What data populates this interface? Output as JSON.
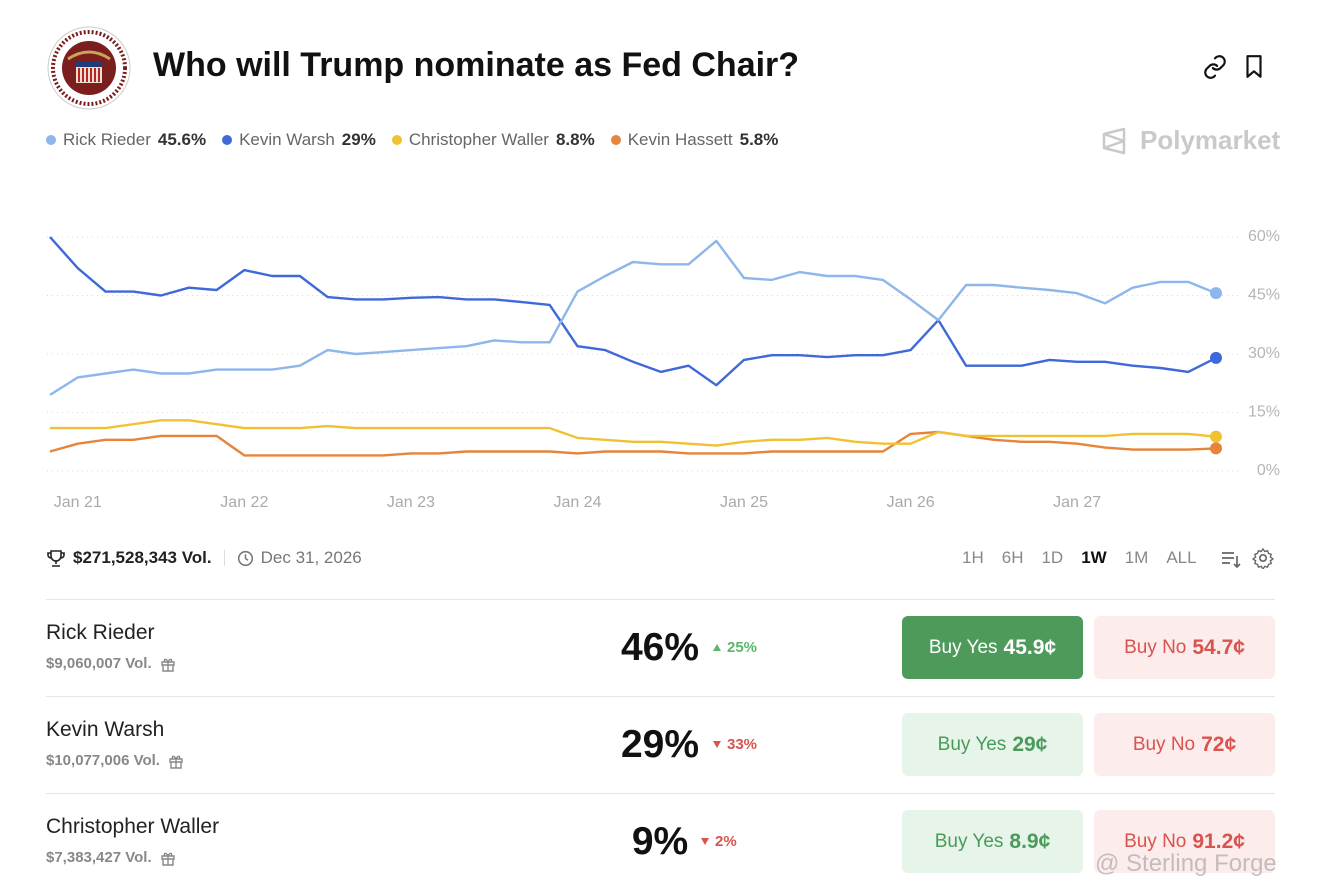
{
  "header": {
    "title": "Who will Trump nominate as Fed Chair?",
    "brand": "Polymarket"
  },
  "chart_data": {
    "type": "line",
    "categories": [
      null,
      "Jan 21",
      null,
      null,
      null,
      null,
      null,
      "Jan 22",
      null,
      null,
      null,
      null,
      null,
      "Jan 23",
      null,
      null,
      null,
      null,
      null,
      "Jan 24",
      null,
      null,
      null,
      null,
      null,
      "Jan 25",
      null,
      null,
      null,
      null,
      null,
      "Jan 26",
      null,
      null,
      null,
      null,
      null,
      "Jan 27",
      null,
      null,
      null,
      null,
      null
    ],
    "series": [
      {
        "name": "Rick Rieder",
        "color": "#8db6ea",
        "current": {
          "value": 45.6,
          "label": "45.6%"
        },
        "values": [
          19.5,
          24,
          25,
          26,
          25,
          25,
          26,
          26,
          26,
          27,
          31,
          30,
          30.5,
          31,
          31.5,
          32,
          33.5,
          33,
          33,
          46,
          50,
          53.6,
          53,
          53,
          59,
          49.5,
          49,
          51,
          50,
          50,
          49,
          44,
          38.7,
          47.7,
          47.7,
          47,
          46.4,
          45.6,
          43,
          47,
          48.5,
          48.5,
          45.6
        ]
      },
      {
        "name": "Kevin Warsh",
        "color": "#3f68d8",
        "current": {
          "value": 29,
          "label": "29%"
        },
        "values": [
          60,
          52,
          46,
          46,
          45,
          47,
          46.4,
          51.5,
          50,
          50,
          44.6,
          44,
          44,
          44.4,
          44.6,
          44,
          44,
          43.3,
          42.6,
          32,
          31,
          28,
          25.4,
          27,
          22,
          28.5,
          29.7,
          29.7,
          29.2,
          29.7,
          29.7,
          31,
          38.7,
          27,
          27,
          27,
          28.5,
          28,
          28,
          27,
          26.4,
          25.4,
          29
        ]
      },
      {
        "name": "Christopher Waller",
        "color": "#f0c233",
        "current": {
          "value": 8.8,
          "label": "8.8%"
        },
        "values": [
          11,
          11,
          11,
          12,
          13,
          13,
          12,
          11,
          11,
          11,
          11.5,
          11,
          11,
          11,
          11,
          11,
          11,
          11,
          11,
          8.5,
          8,
          7.5,
          7.5,
          7,
          6.5,
          7.5,
          8,
          8,
          8.5,
          7.5,
          7,
          7,
          10,
          9,
          9,
          9,
          9,
          9,
          9,
          9.5,
          9.5,
          9.5,
          8.8
        ]
      },
      {
        "name": "Kevin Hassett",
        "color": "#e5843a",
        "current": {
          "value": 5.8,
          "label": "5.8%"
        },
        "values": [
          5,
          7,
          8,
          8,
          9,
          9,
          9,
          4,
          4,
          4,
          4,
          4,
          4,
          4.5,
          4.5,
          5,
          5,
          5,
          5,
          4.5,
          5,
          5,
          5,
          4.5,
          4.5,
          4.5,
          5,
          5,
          5,
          5,
          5,
          9.5,
          10,
          9,
          8,
          7.5,
          7.5,
          7,
          6,
          5.5,
          5.5,
          5.5,
          5.8
        ]
      }
    ],
    "ylim": [
      0,
      60
    ],
    "yticks": [
      {
        "value": 0,
        "label": "0%"
      },
      {
        "value": 15,
        "label": "15%"
      },
      {
        "value": 30,
        "label": "30%"
      },
      {
        "value": 45,
        "label": "45%"
      },
      {
        "value": 60,
        "label": "60%"
      }
    ],
    "grid": true
  },
  "stats": {
    "volume": "$271,528,343 Vol.",
    "end_date": "Dec 31, 2026"
  },
  "ranges": {
    "options": [
      "1H",
      "6H",
      "1D",
      "1W",
      "1M",
      "ALL"
    ],
    "active": 3
  },
  "outcomes": [
    {
      "name": "Rick Rieder",
      "volume": "$9,060,007 Vol.",
      "chance": "46%",
      "change": "25%",
      "direction": "up",
      "buy_yes": "Buy Yes",
      "yes_price": "45.9¢",
      "buy_no": "Buy No",
      "no_price": "54.7¢",
      "selected": true
    },
    {
      "name": "Kevin Warsh",
      "volume": "$10,077,006 Vol.",
      "chance": "29%",
      "change": "33%",
      "direction": "down",
      "buy_yes": "Buy Yes",
      "yes_price": "29¢",
      "buy_no": "Buy No",
      "no_price": "72¢",
      "selected": false
    },
    {
      "name": "Christopher Waller",
      "volume": "$7,383,427 Vol.",
      "chance": "9%",
      "change": "2%",
      "direction": "down",
      "buy_yes": "Buy Yes",
      "yes_price": "8.9¢",
      "buy_no": "Buy No",
      "no_price": "91.2¢",
      "selected": false
    }
  ],
  "watermark": "@ Sterling Forge"
}
